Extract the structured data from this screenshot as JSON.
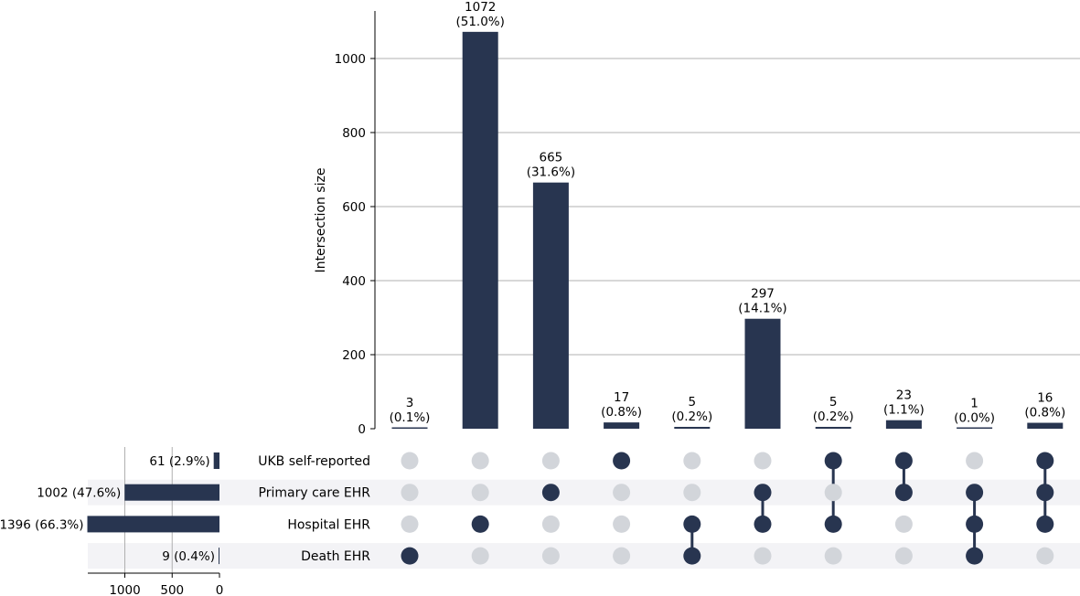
{
  "chart_data": {
    "type": "bar",
    "subtype": "upset",
    "ylabel": "Intersection size",
    "ylim": [
      0,
      1120
    ],
    "y_ticks": [
      0,
      200,
      400,
      600,
      800,
      1000
    ],
    "grid": true,
    "bar_color": "#283550",
    "inactive_dot_color": "#d2d5da",
    "row_stripe_color": "#f3f3f6",
    "gridline_color": "#b0b0b0",
    "sets": [
      {
        "name": "UKB self-reported",
        "size": 61,
        "size_label": "61 (2.9%)"
      },
      {
        "name": "Primary care EHR",
        "size": 1002,
        "size_label": "1002 (47.6%)"
      },
      {
        "name": "Hospital EHR",
        "size": 1396,
        "size_label": "1396 (66.3%)"
      },
      {
        "name": "Death EHR",
        "size": 9,
        "size_label": "9 (0.4%)"
      }
    ],
    "set_size_ticks": [
      {
        "value": 1000,
        "label": "1000"
      },
      {
        "value": 500,
        "label": "500"
      },
      {
        "value": 0,
        "label": "0"
      }
    ],
    "set_size_xlim": [
      0,
      1500
    ],
    "intersections": [
      {
        "value": 3,
        "label": "3",
        "pct": "(0.1%)",
        "members": [
          3
        ]
      },
      {
        "value": 1072,
        "label": "1072",
        "pct": "(51.0%)",
        "members": [
          2
        ]
      },
      {
        "value": 665,
        "label": "665",
        "pct": "(31.6%)",
        "members": [
          1
        ]
      },
      {
        "value": 17,
        "label": "17",
        "pct": "(0.8%)",
        "members": [
          0
        ]
      },
      {
        "value": 5,
        "label": "5",
        "pct": "(0.2%)",
        "members": [
          2,
          3
        ]
      },
      {
        "value": 297,
        "label": "297",
        "pct": "(14.1%)",
        "members": [
          1,
          2
        ]
      },
      {
        "value": 5,
        "label": "5",
        "pct": "(0.2%)",
        "members": [
          0,
          2
        ]
      },
      {
        "value": 23,
        "label": "23",
        "pct": "(1.1%)",
        "members": [
          0,
          1
        ]
      },
      {
        "value": 1,
        "label": "1",
        "pct": "(0.0%)",
        "members": [
          1,
          2,
          3
        ]
      },
      {
        "value": 16,
        "label": "16",
        "pct": "(0.8%)",
        "members": [
          0,
          1,
          2
        ]
      }
    ]
  }
}
